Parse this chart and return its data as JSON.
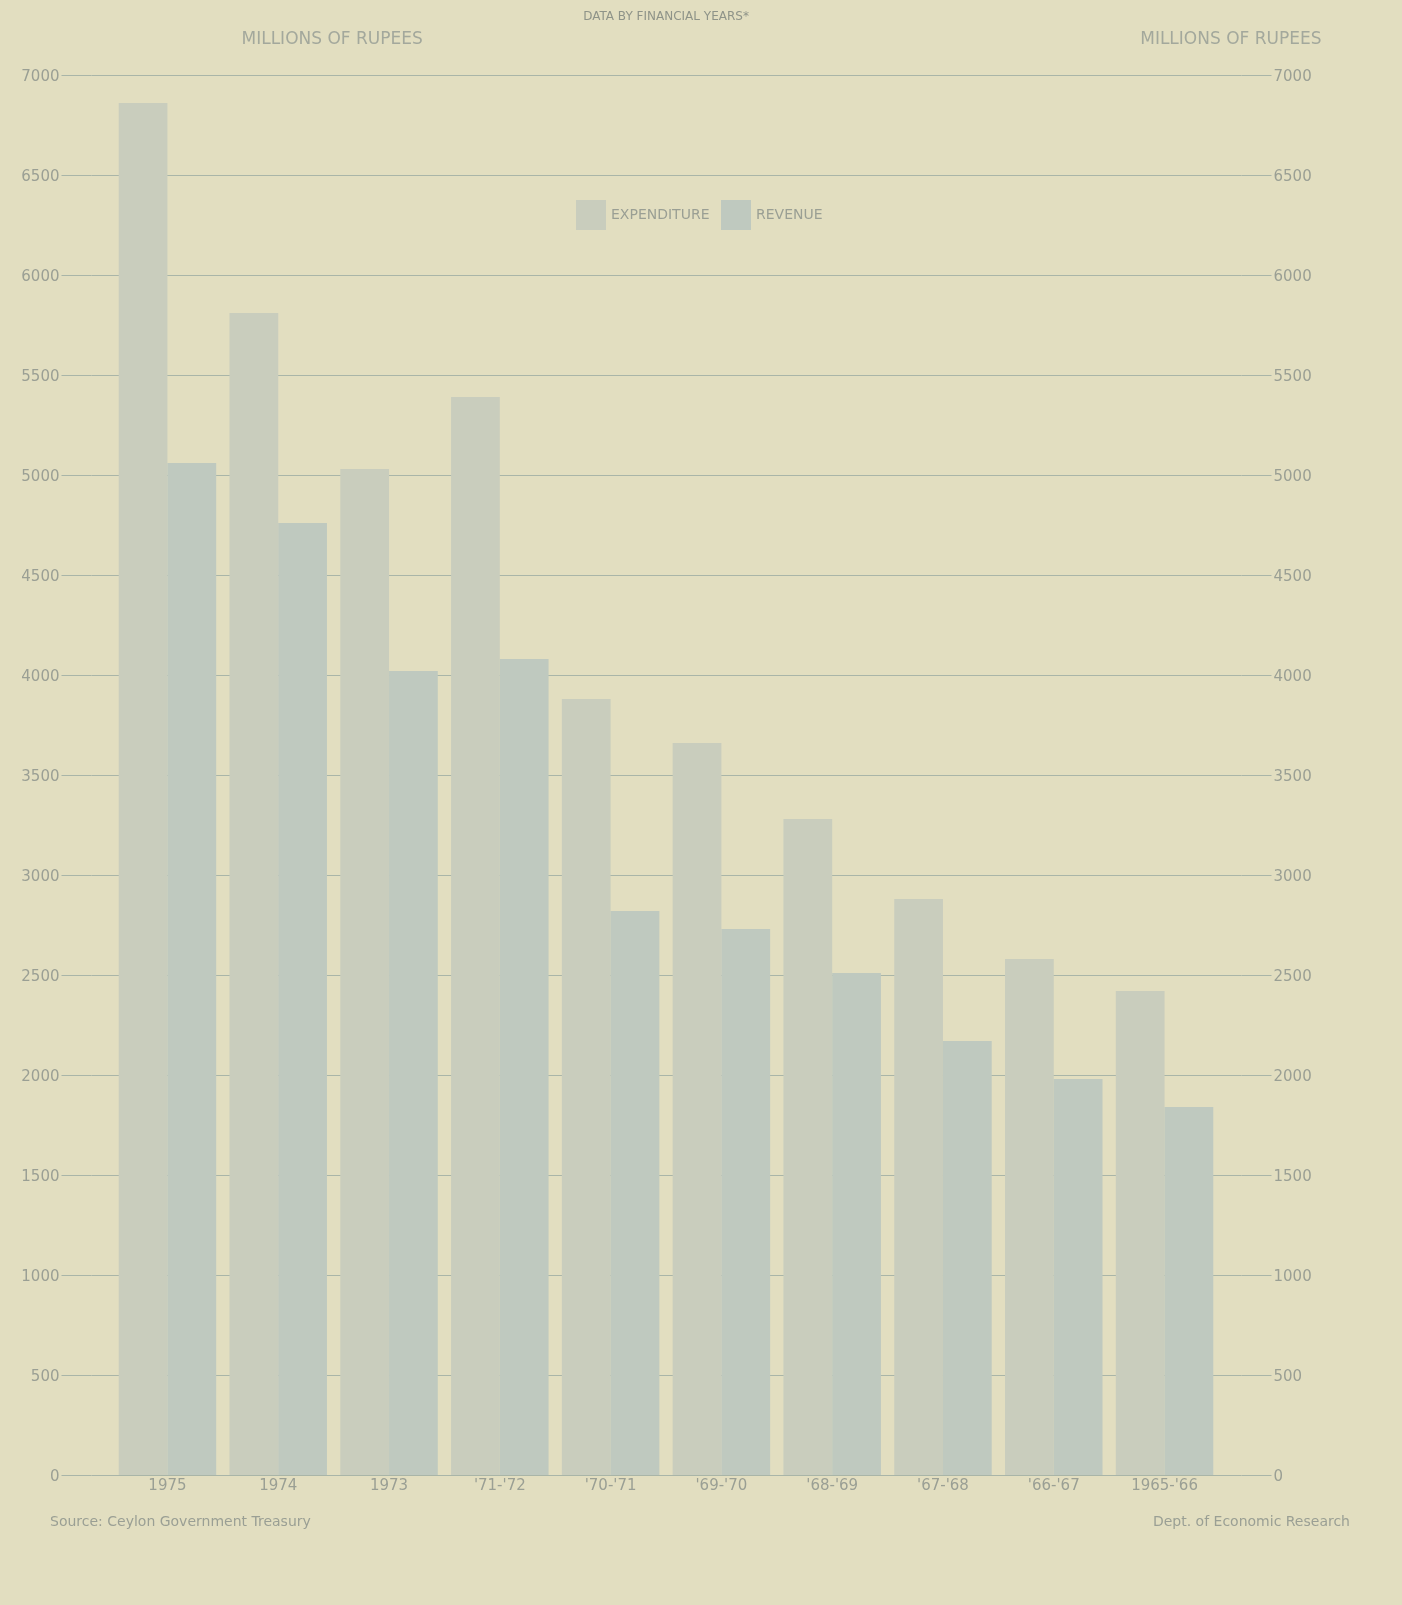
{
  "chart_data": {
    "type": "bar",
    "title": "DATA BY FINANCIAL YEARS*",
    "ylabel": "MILLIONS OF RUPEES",
    "y2label": "MILLIONS OF RUPEES",
    "categories": [
      "1975",
      "1974",
      "1973",
      "'71-'72",
      "'70-'71",
      "'69-'70",
      "'68-'69",
      "'67-'68",
      "'66-'67",
      "1965-'66"
    ],
    "series": [
      {
        "name": "EXPENDITURE",
        "color": "#c9cdbd",
        "values": [
          6860,
          5810,
          5030,
          5390,
          3880,
          3660,
          3280,
          2880,
          2580,
          2420
        ]
      },
      {
        "name": "REVENUE",
        "color": "#bfc9bf",
        "values": [
          5060,
          4760,
          4020,
          4080,
          2820,
          2730,
          2510,
          2170,
          1980,
          1840
        ]
      }
    ],
    "ylim": [
      0,
      7000
    ],
    "yticks": [
      0,
      500,
      1000,
      1500,
      2000,
      2500,
      3000,
      3500,
      4000,
      4500,
      5000,
      5500,
      6000,
      6500,
      7000
    ],
    "y2lim": [
      0,
      7000
    ],
    "y2ticks": [
      0,
      500,
      1000,
      1500,
      2000,
      2500,
      3000,
      3500,
      4000,
      4500,
      5000,
      5500,
      6000,
      6500,
      7000
    ],
    "grid": "y",
    "legend": "top",
    "annotations": [
      "Source: Ceylon Government Treasury",
      "Dept. of Economic Research"
    ]
  }
}
